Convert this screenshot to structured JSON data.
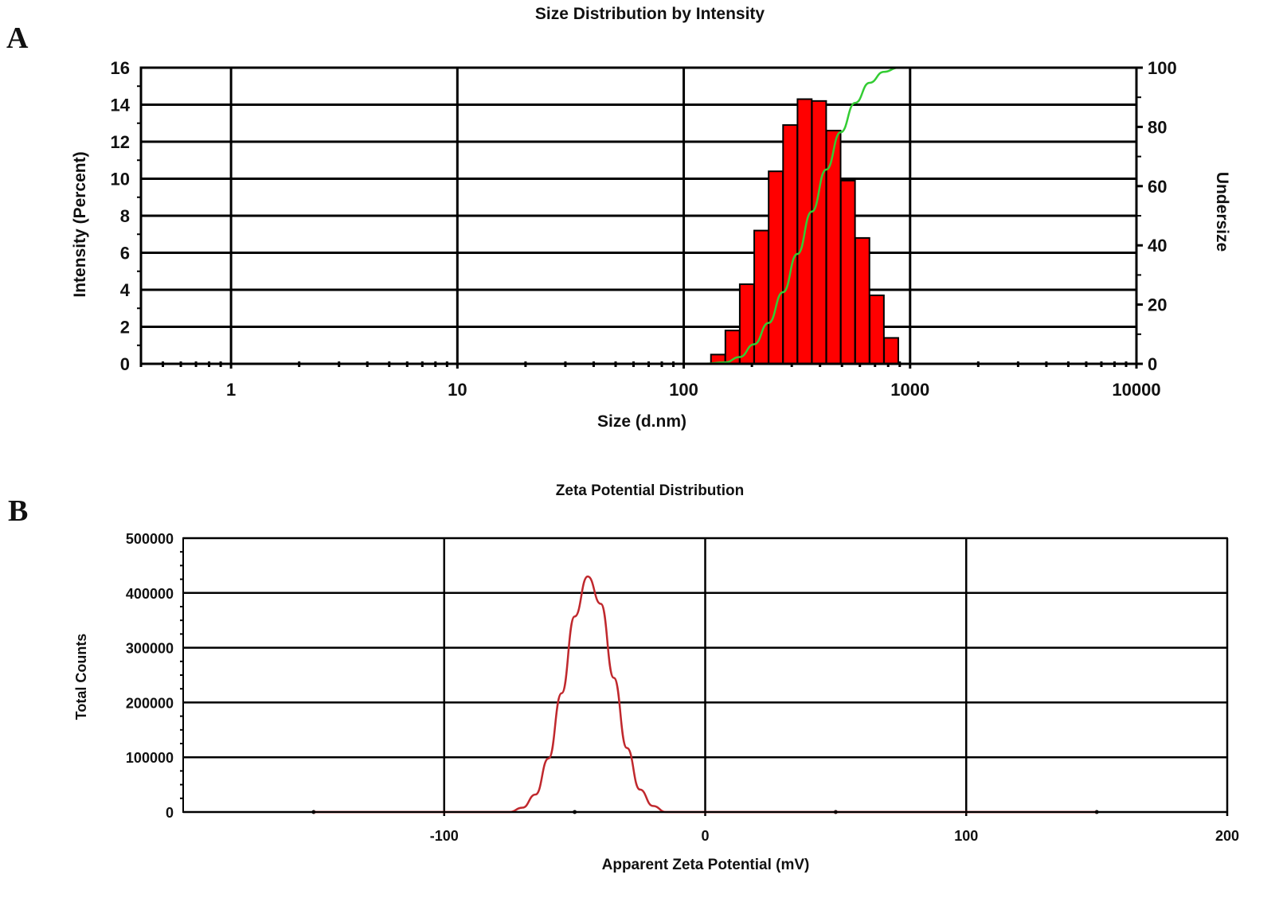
{
  "chart_data": [
    {
      "panel_label": "A",
      "type": "bar",
      "title": "Size Distribution by Intensity",
      "xlabel": "Size (d.nm)",
      "ylabel": "Intensity (Percent)",
      "y2label": "Undersize",
      "xscale": "log",
      "xlim": [
        0.4,
        10000
      ],
      "ylim": [
        0,
        16
      ],
      "y2lim": [
        0,
        100
      ],
      "grid": true,
      "xticks": [
        "1",
        "10",
        "100",
        "1000",
        "10000"
      ],
      "yticks": [
        "0",
        "2",
        "4",
        "6",
        "8",
        "10",
        "12",
        "14",
        "16"
      ],
      "y2ticks": [
        "0",
        "20",
        "40",
        "60",
        "80",
        "100"
      ],
      "bar_color": "#ff0000",
      "line_color": "#33cc33",
      "bars": {
        "sizes": [
          141.8,
          164.2,
          190.1,
          220.2,
          255.0,
          295.3,
          342.0,
          396.1,
          458.7,
          531.2,
          615.1,
          712.4,
          825.0
        ],
        "values": [
          0.5,
          1.8,
          4.3,
          7.2,
          10.4,
          12.9,
          14.3,
          14.2,
          12.6,
          9.9,
          6.8,
          3.7,
          1.4
        ]
      },
      "undersize": {
        "sizes": [
          0.4,
          120,
          152.6,
          176.7,
          204.6,
          237.0,
          274.4,
          317.8,
          368.1,
          426.3,
          493.6,
          571.7,
          662.1,
          766.6,
          887.9,
          1000,
          10000
        ],
        "values": [
          0,
          0,
          0.5,
          2.3,
          6.6,
          13.8,
          24.2,
          37.1,
          51.4,
          65.6,
          78.2,
          88.1,
          94.9,
          98.6,
          100,
          100,
          100
        ]
      }
    },
    {
      "panel_label": "B",
      "type": "line",
      "title": "Zeta Potential Distribution",
      "xlabel": "Apparent Zeta Potential (mV)",
      "ylabel": "Total Counts",
      "xlim": [
        -200,
        200
      ],
      "ylim": [
        0,
        500000
      ],
      "grid": true,
      "xticks": [
        "-100",
        "0",
        "100",
        "200"
      ],
      "yticks": [
        "0",
        "100000",
        "200000",
        "300000",
        "400000",
        "500000"
      ],
      "line_color": "#c0282d",
      "series": [
        {
          "name": "Total Counts",
          "x": [
            -150,
            -75,
            -70,
            -65,
            -60,
            -55,
            -50,
            -45,
            -40,
            -35,
            -30,
            -25,
            -20,
            -15,
            150
          ],
          "y": [
            0,
            0,
            8000,
            32000,
            98000,
            217000,
            357000,
            430000,
            380000,
            245000,
            117000,
            41000,
            11000,
            0,
            0
          ]
        }
      ]
    }
  ]
}
